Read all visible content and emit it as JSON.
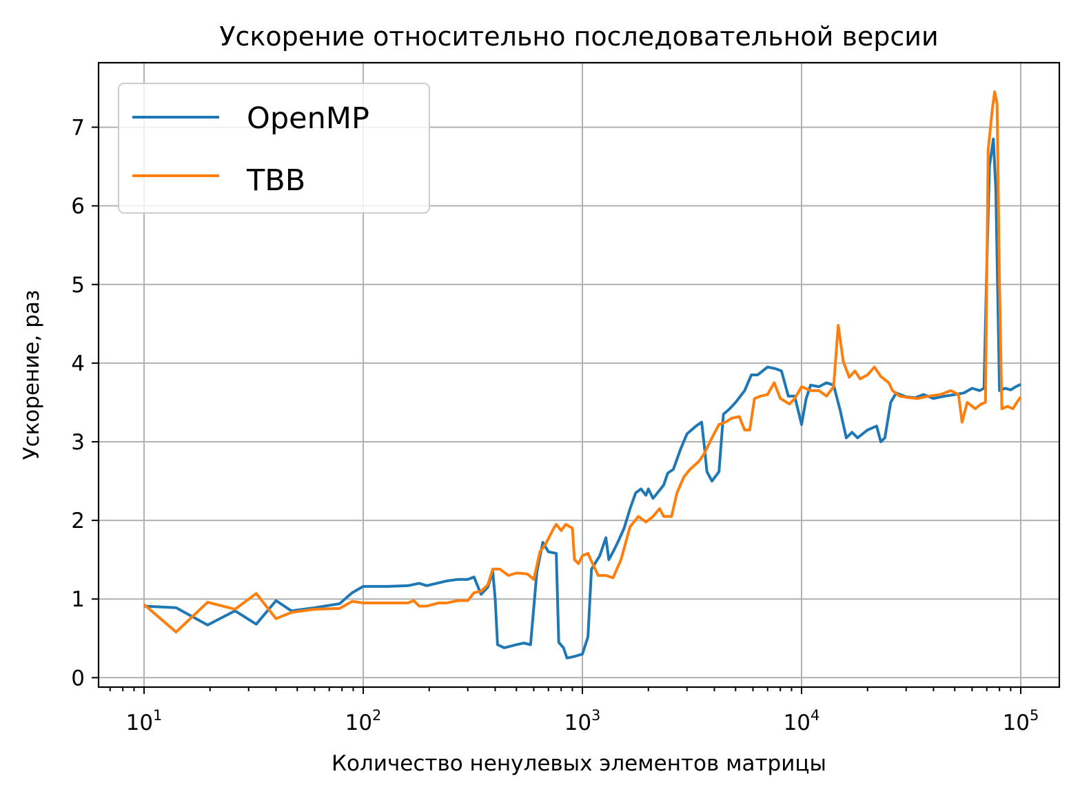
{
  "chart_data": {
    "type": "line",
    "title": "Ускорение относительно последовательной версии",
    "xlabel": "Количество ненулевых элементов матрицы",
    "ylabel": "Ускорение, раз",
    "xscale": "log",
    "xlim": [
      6.2,
      150000
    ],
    "ylim": [
      -0.12,
      7.82
    ],
    "grid": true,
    "legend_position": "top-left",
    "x_ticks": [
      {
        "value": 10,
        "base": "10",
        "exp": "1"
      },
      {
        "value": 100,
        "base": "10",
        "exp": "2"
      },
      {
        "value": 1000,
        "base": "10",
        "exp": "3"
      },
      {
        "value": 10000,
        "base": "10",
        "exp": "4"
      },
      {
        "value": 100000,
        "base": "10",
        "exp": "5"
      }
    ],
    "y_ticks": [
      {
        "value": 0,
        "label": "0"
      },
      {
        "value": 1,
        "label": "1"
      },
      {
        "value": 2,
        "label": "2"
      },
      {
        "value": 3,
        "label": "3"
      },
      {
        "value": 4,
        "label": "4"
      },
      {
        "value": 5,
        "label": "5"
      },
      {
        "value": 6,
        "label": "6"
      },
      {
        "value": 7,
        "label": "7"
      }
    ],
    "series": [
      {
        "name": "OpenMP",
        "color": "#1f77b4",
        "points": [
          [
            10,
            0.91
          ],
          [
            14,
            0.89
          ],
          [
            19.5,
            0.67
          ],
          [
            26,
            0.85
          ],
          [
            32.5,
            0.68
          ],
          [
            40,
            0.98
          ],
          [
            47,
            0.85
          ],
          [
            60,
            0.89
          ],
          [
            78,
            0.94
          ],
          [
            89,
            1.08
          ],
          [
            100,
            1.16
          ],
          [
            130,
            1.16
          ],
          [
            160,
            1.17
          ],
          [
            180,
            1.2
          ],
          [
            195,
            1.17
          ],
          [
            240,
            1.23
          ],
          [
            270,
            1.25
          ],
          [
            300,
            1.25
          ],
          [
            320,
            1.28
          ],
          [
            345,
            1.06
          ],
          [
            370,
            1.15
          ],
          [
            390,
            1.35
          ],
          [
            400,
            1.0
          ],
          [
            410,
            0.42
          ],
          [
            440,
            0.38
          ],
          [
            500,
            0.42
          ],
          [
            540,
            0.44
          ],
          [
            580,
            0.42
          ],
          [
            620,
            1.35
          ],
          [
            660,
            1.72
          ],
          [
            700,
            1.6
          ],
          [
            760,
            1.58
          ],
          [
            780,
            0.45
          ],
          [
            820,
            0.38
          ],
          [
            850,
            0.25
          ],
          [
            920,
            0.27
          ],
          [
            1000,
            0.3
          ],
          [
            1060,
            0.52
          ],
          [
            1100,
            1.38
          ],
          [
            1200,
            1.55
          ],
          [
            1280,
            1.78
          ],
          [
            1320,
            1.5
          ],
          [
            1380,
            1.6
          ],
          [
            1450,
            1.72
          ],
          [
            1550,
            1.9
          ],
          [
            1650,
            2.15
          ],
          [
            1750,
            2.35
          ],
          [
            1850,
            2.4
          ],
          [
            1950,
            2.32
          ],
          [
            2000,
            2.4
          ],
          [
            2100,
            2.28
          ],
          [
            2200,
            2.35
          ],
          [
            2350,
            2.45
          ],
          [
            2450,
            2.6
          ],
          [
            2600,
            2.65
          ],
          [
            2800,
            2.9
          ],
          [
            3000,
            3.1
          ],
          [
            3300,
            3.2
          ],
          [
            3500,
            3.25
          ],
          [
            3600,
            2.95
          ],
          [
            3700,
            2.62
          ],
          [
            3900,
            2.5
          ],
          [
            4200,
            2.62
          ],
          [
            4400,
            3.35
          ],
          [
            4700,
            3.42
          ],
          [
            5000,
            3.5
          ],
          [
            5500,
            3.65
          ],
          [
            5900,
            3.85
          ],
          [
            6300,
            3.85
          ],
          [
            7000,
            3.95
          ],
          [
            7600,
            3.93
          ],
          [
            8100,
            3.9
          ],
          [
            8700,
            3.58
          ],
          [
            9300,
            3.58
          ],
          [
            10000,
            3.22
          ],
          [
            10500,
            3.55
          ],
          [
            11000,
            3.72
          ],
          [
            12000,
            3.7
          ],
          [
            13000,
            3.75
          ],
          [
            14000,
            3.72
          ],
          [
            15000,
            3.4
          ],
          [
            16000,
            3.05
          ],
          [
            17000,
            3.12
          ],
          [
            18000,
            3.05
          ],
          [
            20000,
            3.15
          ],
          [
            22000,
            3.2
          ],
          [
            23000,
            3.0
          ],
          [
            24000,
            3.05
          ],
          [
            25500,
            3.5
          ],
          [
            27000,
            3.62
          ],
          [
            30000,
            3.57
          ],
          [
            33000,
            3.56
          ],
          [
            36000,
            3.6
          ],
          [
            40000,
            3.55
          ],
          [
            45000,
            3.58
          ],
          [
            50000,
            3.6
          ],
          [
            55000,
            3.62
          ],
          [
            60000,
            3.68
          ],
          [
            65000,
            3.65
          ],
          [
            68000,
            3.68
          ],
          [
            70000,
            5.2
          ],
          [
            72000,
            6.5
          ],
          [
            75000,
            6.85
          ],
          [
            77000,
            6.2
          ],
          [
            80000,
            3.65
          ],
          [
            85000,
            3.68
          ],
          [
            90000,
            3.66
          ],
          [
            95000,
            3.7
          ],
          [
            100000,
            3.73
          ]
        ]
      },
      {
        "name": "TBB",
        "color": "#ff7f0e",
        "points": [
          [
            10,
            0.93
          ],
          [
            14,
            0.58
          ],
          [
            19.5,
            0.96
          ],
          [
            26,
            0.87
          ],
          [
            32.5,
            1.07
          ],
          [
            40,
            0.75
          ],
          [
            47,
            0.83
          ],
          [
            60,
            0.87
          ],
          [
            78,
            0.88
          ],
          [
            89,
            0.97
          ],
          [
            100,
            0.95
          ],
          [
            130,
            0.95
          ],
          [
            160,
            0.95
          ],
          [
            170,
            0.98
          ],
          [
            180,
            0.91
          ],
          [
            195,
            0.91
          ],
          [
            220,
            0.95
          ],
          [
            240,
            0.95
          ],
          [
            270,
            0.98
          ],
          [
            300,
            0.98
          ],
          [
            320,
            1.08
          ],
          [
            345,
            1.1
          ],
          [
            370,
            1.18
          ],
          [
            390,
            1.38
          ],
          [
            420,
            1.38
          ],
          [
            460,
            1.3
          ],
          [
            500,
            1.33
          ],
          [
            560,
            1.32
          ],
          [
            600,
            1.25
          ],
          [
            640,
            1.6
          ],
          [
            680,
            1.7
          ],
          [
            740,
            1.9
          ],
          [
            760,
            1.95
          ],
          [
            800,
            1.87
          ],
          [
            840,
            1.95
          ],
          [
            900,
            1.9
          ],
          [
            920,
            1.5
          ],
          [
            960,
            1.45
          ],
          [
            1000,
            1.55
          ],
          [
            1060,
            1.58
          ],
          [
            1100,
            1.48
          ],
          [
            1180,
            1.3
          ],
          [
            1280,
            1.3
          ],
          [
            1380,
            1.27
          ],
          [
            1500,
            1.5
          ],
          [
            1650,
            1.92
          ],
          [
            1800,
            2.05
          ],
          [
            1950,
            1.98
          ],
          [
            2100,
            2.05
          ],
          [
            2250,
            2.15
          ],
          [
            2350,
            2.05
          ],
          [
            2550,
            2.05
          ],
          [
            2700,
            2.35
          ],
          [
            2900,
            2.55
          ],
          [
            3100,
            2.65
          ],
          [
            3400,
            2.75
          ],
          [
            3600,
            2.85
          ],
          [
            3900,
            3.05
          ],
          [
            4200,
            3.22
          ],
          [
            4500,
            3.25
          ],
          [
            4800,
            3.3
          ],
          [
            5200,
            3.32
          ],
          [
            5500,
            3.15
          ],
          [
            5800,
            3.15
          ],
          [
            6100,
            3.55
          ],
          [
            6500,
            3.58
          ],
          [
            7000,
            3.6
          ],
          [
            7500,
            3.75
          ],
          [
            8000,
            3.55
          ],
          [
            8800,
            3.48
          ],
          [
            9300,
            3.55
          ],
          [
            10000,
            3.7
          ],
          [
            11000,
            3.65
          ],
          [
            12000,
            3.65
          ],
          [
            13000,
            3.58
          ],
          [
            14000,
            3.7
          ],
          [
            14700,
            4.48
          ],
          [
            15500,
            4.02
          ],
          [
            16500,
            3.82
          ],
          [
            17500,
            3.9
          ],
          [
            18500,
            3.8
          ],
          [
            20000,
            3.85
          ],
          [
            21500,
            3.95
          ],
          [
            23000,
            3.83
          ],
          [
            25000,
            3.75
          ],
          [
            26000,
            3.65
          ],
          [
            28000,
            3.58
          ],
          [
            31000,
            3.56
          ],
          [
            34000,
            3.55
          ],
          [
            38000,
            3.58
          ],
          [
            43000,
            3.6
          ],
          [
            48000,
            3.65
          ],
          [
            52000,
            3.6
          ],
          [
            54000,
            3.25
          ],
          [
            57000,
            3.5
          ],
          [
            62000,
            3.42
          ],
          [
            66000,
            3.48
          ],
          [
            69000,
            3.5
          ],
          [
            71000,
            6.7
          ],
          [
            74000,
            7.2
          ],
          [
            76000,
            7.45
          ],
          [
            78000,
            7.3
          ],
          [
            80000,
            5.0
          ],
          [
            82000,
            3.42
          ],
          [
            87000,
            3.45
          ],
          [
            92000,
            3.42
          ],
          [
            96000,
            3.5
          ],
          [
            100000,
            3.57
          ]
        ]
      }
    ]
  }
}
